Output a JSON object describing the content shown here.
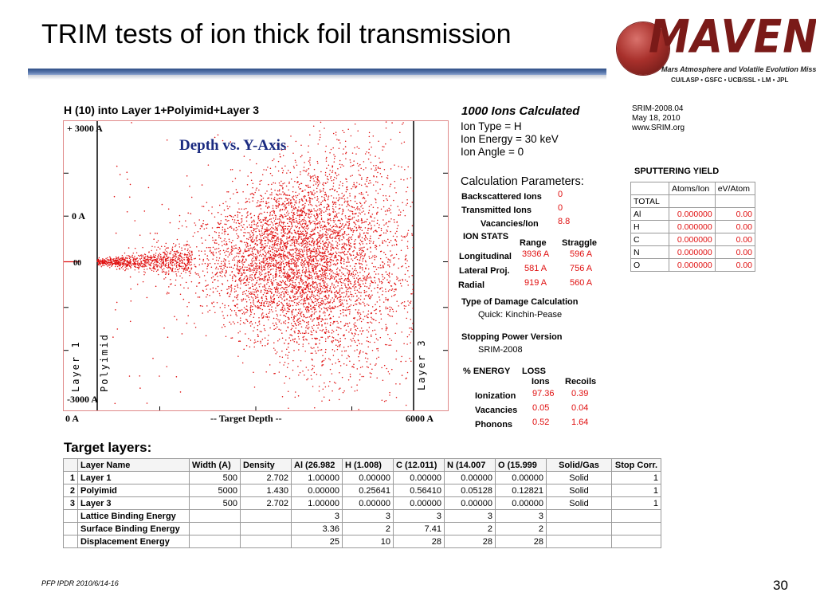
{
  "slide": {
    "title": "TRIM tests of ion thick foil transmission",
    "footer": "PFP IPDR 2010/6/14-16",
    "page_number": "30"
  },
  "logo": {
    "wordmark": "MAVEN",
    "subtitle": "Mars Atmosphere and Volatile Evolution Mission",
    "institutions": "CU/LASP • GSFC • UCB/SSL • LM • JPL",
    "colors": {
      "planet": "#a8302b",
      "wordmark": "#7a1a18"
    }
  },
  "plot": {
    "header": "H (10) into Layer 1+Polyimid+Layer 3",
    "title": "Depth vs. Y-Axis",
    "y_top_label": "+ 3000 A",
    "y_zero_label": "0 A",
    "y_mid_label": "00",
    "y_bottom_label": "-3000 A",
    "x_left_label": "0 A",
    "x_center_label": "-- Target Depth --",
    "x_right_label": "6000 A",
    "layer_labels": [
      "Layer 1",
      "Polyimid",
      "Layer 3"
    ],
    "colors": {
      "points": "#e01010",
      "frame": "#e08a8a",
      "title": "#1a2a80"
    }
  },
  "chart_data": {
    "type": "scatter",
    "title": "Depth vs. Y-Axis",
    "xlabel": "-- Target Depth --",
    "ylabel": "",
    "xlim": [
      0,
      6000
    ],
    "ylim": [
      -3000,
      3000
    ],
    "layer_boundaries": [
      500,
      5500
    ],
    "distribution": {
      "mean_depth_A": 3936,
      "longitudinal_straggle_A": 596,
      "lateral_spread_A": 581,
      "points": 1000
    }
  },
  "ions": {
    "calculated": "1000 Ions Calculated",
    "type": "Ion Type = H",
    "energy": "Ion Energy = 30 keV",
    "angle": "Ion Angle = 0"
  },
  "srim": {
    "version": "SRIM-2008.04",
    "date": "May 18, 2010",
    "site": "www.SRIM.org"
  },
  "calc": {
    "title": "Calculation Parameters:",
    "backscattered_label": "Backscattered Ions",
    "backscattered": "0",
    "transmitted_label": "Transmitted Ions",
    "transmitted": "0",
    "vacancies_label": "Vacancies/Ion",
    "vacancies": "8.8",
    "stats_label": "ION STATS",
    "range_label": "Range",
    "straggle_label": "Straggle",
    "rows": [
      {
        "label": "Longitudinal",
        "range": "3936 A",
        "straggle": "596 A"
      },
      {
        "label": "Lateral Proj.",
        "range": "581 A",
        "straggle": "756 A"
      },
      {
        "label": "Radial",
        "range": "919 A",
        "straggle": "560 A"
      }
    ],
    "damage_label": "Type of Damage Calculation",
    "damage_value": "Quick: Kinchin-Pease",
    "stopping_label": "Stopping Power Version",
    "stopping_value": "SRIM-2008",
    "energy_label": "% ENERGY",
    "loss_label": "LOSS",
    "ions_label": "Ions",
    "recoils_label": "Recoils",
    "energy_rows": [
      {
        "label": "Ionization",
        "ions": "97.36",
        "recoils": "0.39"
      },
      {
        "label": "Vacancies",
        "ions": "0.05",
        "recoils": "0.04"
      },
      {
        "label": "Phonons",
        "ions": "0.52",
        "recoils": "1.64"
      }
    ]
  },
  "sputtering": {
    "title": "SPUTTERING YIELD",
    "headers": [
      "",
      "Atoms/Ion",
      "eV/Atom"
    ],
    "rows": [
      {
        "el": "TOTAL",
        "atoms": "",
        "ev": ""
      },
      {
        "el": "Al",
        "atoms": "0.000000",
        "ev": "0.00"
      },
      {
        "el": "H",
        "atoms": "0.000000",
        "ev": "0.00"
      },
      {
        "el": "C",
        "atoms": "0.000000",
        "ev": "0.00"
      },
      {
        "el": "N",
        "atoms": "0.000000",
        "ev": "0.00"
      },
      {
        "el": "O",
        "atoms": "0.000000",
        "ev": "0.00"
      }
    ]
  },
  "target": {
    "title": "Target layers:",
    "headers": [
      "",
      "Layer Name",
      "Width (A)",
      "Density",
      "Al (26.982",
      "H (1.008)",
      "C (12.011)",
      "N (14.007",
      "O (15.999",
      "Solid/Gas",
      "Stop Corr."
    ],
    "rows": [
      [
        "1",
        "Layer 1",
        "500",
        "2.702",
        "1.00000",
        "0.00000",
        "0.00000",
        "0.00000",
        "0.00000",
        "Solid",
        "1"
      ],
      [
        "2",
        "Polyimid",
        "5000",
        "1.430",
        "0.00000",
        "0.25641",
        "0.56410",
        "0.05128",
        "0.12821",
        "Solid",
        "1"
      ],
      [
        "3",
        "Layer 3",
        "500",
        "2.702",
        "1.00000",
        "0.00000",
        "0.00000",
        "0.00000",
        "0.00000",
        "Solid",
        "1"
      ],
      [
        "",
        "Lattice Binding Energy",
        "",
        "",
        "3",
        "3",
        "3",
        "3",
        "3",
        "",
        ""
      ],
      [
        "",
        "Surface Binding Energy",
        "",
        "",
        "3.36",
        "2",
        "7.41",
        "2",
        "2",
        "",
        ""
      ],
      [
        "",
        "Displacement Energy",
        "",
        "",
        "25",
        "10",
        "28",
        "28",
        "28",
        "",
        ""
      ]
    ]
  }
}
